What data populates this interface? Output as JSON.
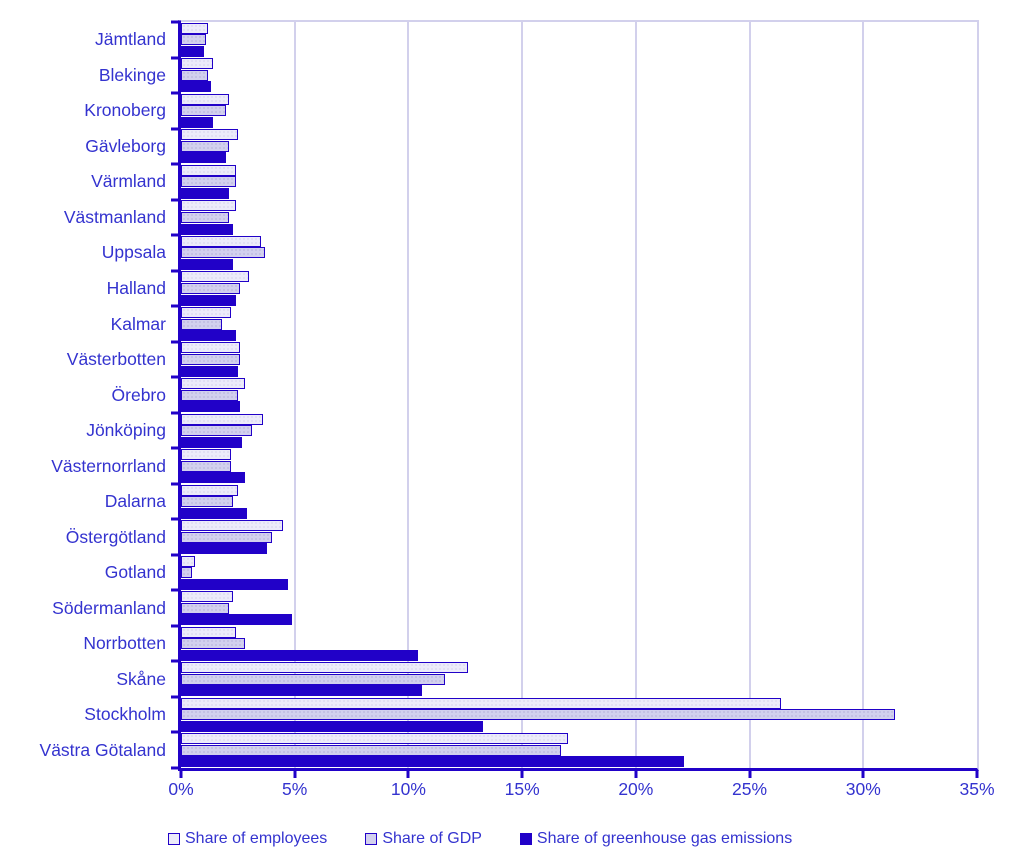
{
  "chart_data": {
    "type": "bar",
    "orientation": "horizontal",
    "title": "",
    "xlabel": "",
    "ylabel": "",
    "categories": [
      "Jämtland",
      "Blekinge",
      "Kronoberg",
      "Gävleborg",
      "Värmland",
      "Västmanland",
      "Uppsala",
      "Halland",
      "Kalmar",
      "Västerbotten",
      "Örebro",
      "Jönköping",
      "Västernorrland",
      "Dalarna",
      "Östergötland",
      "Gotland",
      "Södermanland",
      "Norrbotten",
      "Skåne",
      "Stockholm",
      "Västra Götaland"
    ],
    "series": [
      {
        "name": "Share of employees",
        "values": [
          1.2,
          1.4,
          2.1,
          2.5,
          2.4,
          2.4,
          3.5,
          3.0,
          2.2,
          2.6,
          2.8,
          3.6,
          2.2,
          2.5,
          4.5,
          0.6,
          2.3,
          2.4,
          12.6,
          26.4,
          17.0
        ]
      },
      {
        "name": "Share of GDP",
        "values": [
          1.1,
          1.2,
          2.0,
          2.1,
          2.4,
          2.1,
          3.7,
          2.6,
          1.8,
          2.6,
          2.5,
          3.1,
          2.2,
          2.3,
          4.0,
          0.5,
          2.1,
          2.8,
          11.6,
          31.4,
          16.7
        ]
      },
      {
        "name": "Share of greenhouse gas emissions",
        "values": [
          1.0,
          1.3,
          1.4,
          2.0,
          2.1,
          2.3,
          2.3,
          2.4,
          2.4,
          2.5,
          2.6,
          2.7,
          2.8,
          2.9,
          3.8,
          4.7,
          4.9,
          10.4,
          10.6,
          13.3,
          22.1
        ]
      }
    ],
    "xlim": [
      0,
      35
    ],
    "x_ticks": [
      "0%",
      "5%",
      "10%",
      "15%",
      "20%",
      "25%",
      "30%",
      "35%"
    ],
    "grid": true,
    "legend_position": "bottom"
  },
  "colors": {
    "axis_and_emissions": "#2101C8",
    "employees_fill": "#ECEBFA",
    "employees_dot": "#DDDBF1",
    "gdp_fill": "#D2D0EE",
    "gdp_dot": "#BFBCE0",
    "gridline": "#D2D0EC",
    "label_text": "#3433CF"
  }
}
